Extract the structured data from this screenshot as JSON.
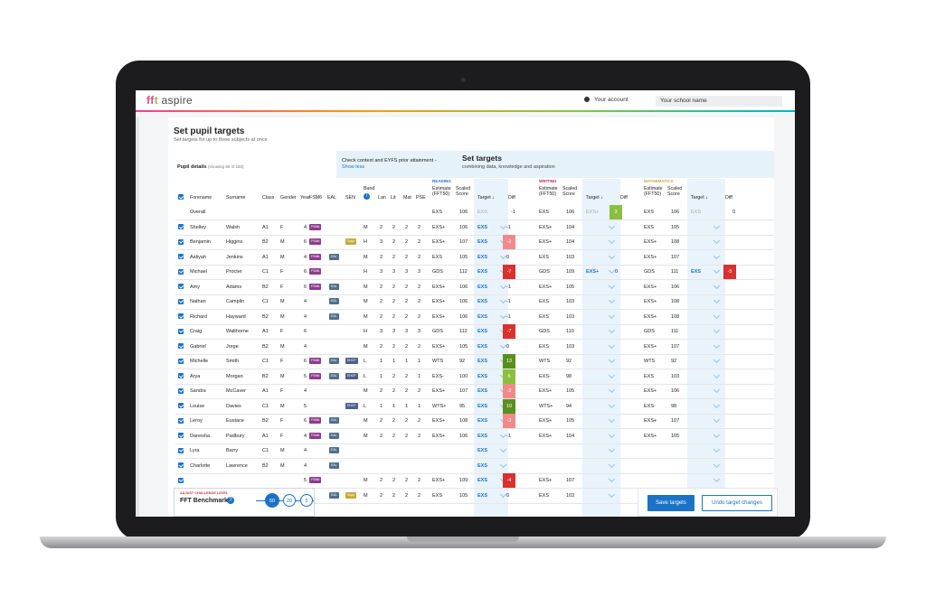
{
  "app": {
    "logo_prefix": "ff",
    "logo_mid": "t",
    "logo_suffix": "aspire"
  },
  "header": {
    "account_label": "Your account",
    "school_placeholder": "Your school name"
  },
  "page": {
    "title": "Set pupil targets",
    "subtitle": "Set targets for up to three subjects at once"
  },
  "pupil_details": {
    "label": "Pupil details",
    "showing": "(showing 59 of 183)"
  },
  "context": {
    "label": "Check context and EYFS prior attainment -",
    "link": "Show less"
  },
  "set_targets": {
    "title": "Set targets",
    "subtitle": "combining data, knowledge and aspiration"
  },
  "subjects": [
    {
      "name": "READING",
      "color": "#1a73c8"
    },
    {
      "name": "WRITING",
      "color": "#c0285a"
    },
    {
      "name": "MATHEMATICS",
      "color": "#c8a83c"
    }
  ],
  "columns": {
    "forename": "Forename",
    "surname": "Surname",
    "class": "Class",
    "gender": "Gender",
    "year": "Year",
    "fsm6": "FSM6",
    "eal": "EAL",
    "sen": "SEN",
    "band": "Band",
    "lan": "Lan",
    "lit": "Lit",
    "mat": "Mat",
    "pse": "PSE",
    "estimate": "Estimate",
    "estimate2": "(FFT50)",
    "scaled": "Scaled",
    "scaled2": "Score",
    "target": "Target",
    "diff": "Diff"
  },
  "overall": {
    "label": "Overall",
    "read": {
      "est": "EXS",
      "score": "106",
      "target": "EXS",
      "diff": "-1"
    },
    "write": {
      "est": "EXS",
      "score": "106",
      "target": "EXS+",
      "diff": "3"
    },
    "math": {
      "est": "EXS",
      "score": "106",
      "target": "EXS",
      "diff": "0"
    }
  },
  "pupils": [
    {
      "f": "Shelley",
      "s": "Walsh",
      "c": "A1",
      "g": "F",
      "y": "4",
      "fsm": true,
      "eal": false,
      "sen": false,
      "supp": false,
      "band": "M",
      "lan": "2",
      "lit": "2",
      "mat": "2",
      "pse": "2",
      "rest": "EXS+",
      "rsc": "106",
      "rt": "EXS",
      "rd": "-1",
      "west": "EXS+",
      "wsc": "104",
      "wt": "",
      "wd": "",
      "mest": "EXS",
      "msc": "105",
      "mt": "",
      "md": ""
    },
    {
      "f": "Benjamin",
      "s": "Higgins",
      "c": "B2",
      "g": "M",
      "y": "6",
      "fsm": true,
      "eal": false,
      "sen": false,
      "supp": true,
      "band": "H",
      "lan": "3",
      "lit": "2",
      "mat": "2",
      "pse": "2",
      "rest": "EXS+",
      "rsc": "107",
      "rt": "EXS",
      "rd": "-2",
      "west": "EXS+",
      "wsc": "104",
      "wt": "",
      "wd": "",
      "mest": "EXS+",
      "msc": "108",
      "mt": "",
      "md": ""
    },
    {
      "f": "Aaliyah",
      "s": "Jenkins",
      "c": "A1",
      "g": "M",
      "y": "4",
      "fsm": true,
      "eal": true,
      "sen": false,
      "supp": false,
      "band": "M",
      "lan": "2",
      "lit": "2",
      "mat": "2",
      "pse": "2",
      "rest": "EXS",
      "rsc": "105",
      "rt": "EXS",
      "rd": "0",
      "west": "EXS",
      "wsc": "103",
      "wt": "",
      "wd": "",
      "mest": "EXS+",
      "msc": "107",
      "mt": "",
      "md": ""
    },
    {
      "f": "Michael",
      "s": "Procter",
      "c": "C1",
      "g": "F",
      "y": "6",
      "fsm": true,
      "eal": false,
      "sen": false,
      "supp": false,
      "band": "H",
      "lan": "3",
      "lit": "3",
      "mat": "3",
      "pse": "3",
      "rest": "GDS",
      "rsc": "112",
      "rt": "EXS",
      "rd": "-7",
      "west": "GDS",
      "wsc": "109",
      "wt": "EXS+",
      "wd": "0",
      "mest": "GDS",
      "msc": "111",
      "mt": "EXS",
      "md": "-5"
    },
    {
      "f": "Amy",
      "s": "Adams",
      "c": "B2",
      "g": "F",
      "y": "6",
      "fsm": true,
      "eal": true,
      "sen": false,
      "supp": false,
      "band": "M",
      "lan": "2",
      "lit": "2",
      "mat": "2",
      "pse": "2",
      "rest": "EXS+",
      "rsc": "106",
      "rt": "EXS",
      "rd": "-1",
      "west": "EXS+",
      "wsc": "105",
      "wt": "",
      "wd": "",
      "mest": "EXS+",
      "msc": "106",
      "mt": "",
      "md": ""
    },
    {
      "f": "Nathan",
      "s": "Camplin",
      "c": "C1",
      "g": "M",
      "y": "4",
      "fsm": false,
      "eal": true,
      "sen": false,
      "supp": false,
      "band": "M",
      "lan": "2",
      "lit": "2",
      "mat": "2",
      "pse": "2",
      "rest": "EXS+",
      "rsc": "106",
      "rt": "EXS",
      "rd": "-1",
      "west": "EXS",
      "wsc": "103",
      "wt": "",
      "wd": "",
      "mest": "EXS+",
      "msc": "108",
      "mt": "",
      "md": ""
    },
    {
      "f": "Richard",
      "s": "Hayward",
      "c": "B2",
      "g": "M",
      "y": "4",
      "fsm": false,
      "eal": true,
      "sen": false,
      "supp": false,
      "band": "M",
      "lan": "2",
      "lit": "2",
      "mat": "2",
      "pse": "2",
      "rest": "EXS+",
      "rsc": "106",
      "rt": "EXS",
      "rd": "-1",
      "west": "EXS",
      "wsc": "103",
      "wt": "",
      "wd": "",
      "mest": "EXS+",
      "msc": "108",
      "mt": "",
      "md": ""
    },
    {
      "f": "Craig",
      "s": "Walthorne",
      "c": "A1",
      "g": "F",
      "y": "6",
      "fsm": false,
      "eal": false,
      "sen": false,
      "supp": false,
      "band": "H",
      "lan": "3",
      "lit": "3",
      "mat": "3",
      "pse": "3",
      "rest": "GDS",
      "rsc": "112",
      "rt": "EXS",
      "rd": "-7",
      "west": "GDS",
      "wsc": "110",
      "wt": "",
      "wd": "",
      "mest": "GDS",
      "msc": "111",
      "mt": "",
      "md": ""
    },
    {
      "f": "Gabriel",
      "s": "Jorge",
      "c": "B2",
      "g": "M",
      "y": "4",
      "fsm": false,
      "eal": false,
      "sen": false,
      "supp": false,
      "band": "M",
      "lan": "2",
      "lit": "2",
      "mat": "2",
      "pse": "2",
      "rest": "EXS+",
      "rsc": "105",
      "rt": "EXS",
      "rd": "0",
      "west": "EXS",
      "wsc": "103",
      "wt": "",
      "wd": "",
      "mest": "EXS+",
      "msc": "107",
      "mt": "",
      "md": ""
    },
    {
      "f": "Michelle",
      "s": "Smith",
      "c": "C1",
      "g": "F",
      "y": "6",
      "fsm": true,
      "eal": true,
      "sen": true,
      "supp": false,
      "band": "L",
      "lan": "1",
      "lit": "1",
      "mat": "1",
      "pse": "1",
      "rest": "WTS",
      "rsc": "92",
      "rt": "EXS",
      "rd": "13",
      "west": "WTS",
      "wsc": "92",
      "wt": "",
      "wd": "",
      "mest": "WTS",
      "msc": "92",
      "mt": "",
      "md": ""
    },
    {
      "f": "Arya",
      "s": "Morgan",
      "c": "B2",
      "g": "M",
      "y": "5",
      "fsm": true,
      "eal": true,
      "sen": true,
      "supp": false,
      "band": "L",
      "lan": "1",
      "lit": "2",
      "mat": "2",
      "pse": "1",
      "rest": "EXS-",
      "rsc": "100",
      "rt": "EXS",
      "rd": "5",
      "west": "EXS-",
      "wsc": "98",
      "wt": "",
      "wd": "",
      "mest": "EXS",
      "msc": "103",
      "mt": "",
      "md": ""
    },
    {
      "f": "Sandra",
      "s": "McCaver",
      "c": "A1",
      "g": "F",
      "y": "4",
      "fsm": false,
      "eal": false,
      "sen": false,
      "supp": false,
      "band": "M",
      "lan": "2",
      "lit": "2",
      "mat": "2",
      "pse": "2",
      "rest": "EXS+",
      "rsc": "107",
      "rt": "EXS",
      "rd": "-2",
      "west": "EXS+",
      "wsc": "105",
      "wt": "",
      "wd": "",
      "mest": "EXS+",
      "msc": "106",
      "mt": "",
      "md": ""
    },
    {
      "f": "Louise",
      "s": "Davies",
      "c": "C1",
      "g": "M",
      "y": "5",
      "fsm": false,
      "eal": false,
      "sen": true,
      "supp": false,
      "band": "L",
      "lan": "1",
      "lit": "1",
      "mat": "1",
      "pse": "1",
      "rest": "WTS+",
      "rsc": "95",
      "rt": "EXS",
      "rd": "10",
      "west": "WTS+",
      "wsc": "94",
      "wt": "",
      "wd": "",
      "mest": "EXS-",
      "msc": "98",
      "mt": "",
      "md": ""
    },
    {
      "f": "Leroy",
      "s": "Eustace",
      "c": "B2",
      "g": "F",
      "y": "6",
      "fsm": true,
      "eal": true,
      "sen": false,
      "supp": false,
      "band": "M",
      "lan": "2",
      "lit": "2",
      "mat": "2",
      "pse": "2",
      "rest": "EXS+",
      "rsc": "108",
      "rt": "EXS",
      "rd": "-3",
      "west": "EXS+",
      "wsc": "105",
      "wt": "",
      "wd": "",
      "mest": "EXS+",
      "msc": "107",
      "mt": "",
      "md": ""
    },
    {
      "f": "Danesha",
      "s": "Padbury",
      "c": "A1",
      "g": "F",
      "y": "4",
      "fsm": true,
      "eal": true,
      "sen": false,
      "supp": false,
      "band": "M",
      "lan": "2",
      "lit": "2",
      "mat": "2",
      "pse": "2",
      "rest": "EXS+",
      "rsc": "106",
      "rt": "EXS",
      "rd": "-1",
      "west": "EXS+",
      "wsc": "104",
      "wt": "",
      "wd": "",
      "mest": "EXS+",
      "msc": "105",
      "mt": "",
      "md": ""
    },
    {
      "f": "Lyra",
      "s": "Barry",
      "c": "C1",
      "g": "M",
      "y": "4",
      "fsm": false,
      "eal": true,
      "sen": false,
      "supp": false,
      "band": "",
      "lan": "",
      "lit": "",
      "mat": "",
      "pse": "",
      "rest": "",
      "rsc": "",
      "rt": "EXS",
      "rd": "",
      "west": "",
      "wsc": "",
      "wt": "",
      "wd": "",
      "mest": "",
      "msc": "",
      "mt": "",
      "md": ""
    },
    {
      "f": "Charlotte",
      "s": "Lawrence",
      "c": "B2",
      "g": "M",
      "y": "4",
      "fsm": false,
      "eal": true,
      "sen": false,
      "supp": false,
      "band": "",
      "lan": "",
      "lit": "",
      "mat": "",
      "pse": "",
      "rest": "",
      "rsc": "",
      "rt": "EXS",
      "rd": "",
      "west": "",
      "wsc": "",
      "wt": "",
      "wd": "",
      "mest": "",
      "msc": "",
      "mt": "",
      "md": ""
    },
    {
      "f": "",
      "s": "",
      "c": "",
      "g": "",
      "y": "5",
      "fsm": true,
      "eal": false,
      "sen": false,
      "supp": false,
      "band": "M",
      "lan": "2",
      "lit": "2",
      "mat": "2",
      "pse": "2",
      "rest": "EXS+",
      "rsc": "109",
      "rt": "EXS",
      "rd": "-4",
      "west": "EXS+",
      "wsc": "107",
      "wt": "",
      "wd": "",
      "mest": "",
      "msc": "",
      "mt": "",
      "md": ""
    },
    {
      "f": "",
      "s": "",
      "c": "",
      "g": "",
      "y": "4",
      "fsm": false,
      "eal": true,
      "sen": false,
      "supp": true,
      "band": "M",
      "lan": "2",
      "lit": "2",
      "mat": "2",
      "pse": "2",
      "rest": "EXS",
      "rsc": "105",
      "rt": "EXS",
      "rd": "0",
      "west": "EXS",
      "wsc": "103",
      "wt": "",
      "wd": "",
      "mest": "",
      "msc": "",
      "mt": "",
      "md": ""
    }
  ],
  "tags": {
    "fsm": "FSM6",
    "eal": "EAL",
    "sen": "EHCP",
    "supp": "Supp"
  },
  "benchmark": {
    "label": "ADJUST CHALLENGE LEVEL",
    "title": "FFT Benchmark",
    "help": "?",
    "options": [
      "50",
      "20",
      "5"
    ]
  },
  "actions": {
    "save": "Save targets",
    "undo": "Undo target changes"
  },
  "colors": {
    "accent": "#1a73c8",
    "negative": "#d9322e",
    "positive": "#5a8f1e"
  }
}
